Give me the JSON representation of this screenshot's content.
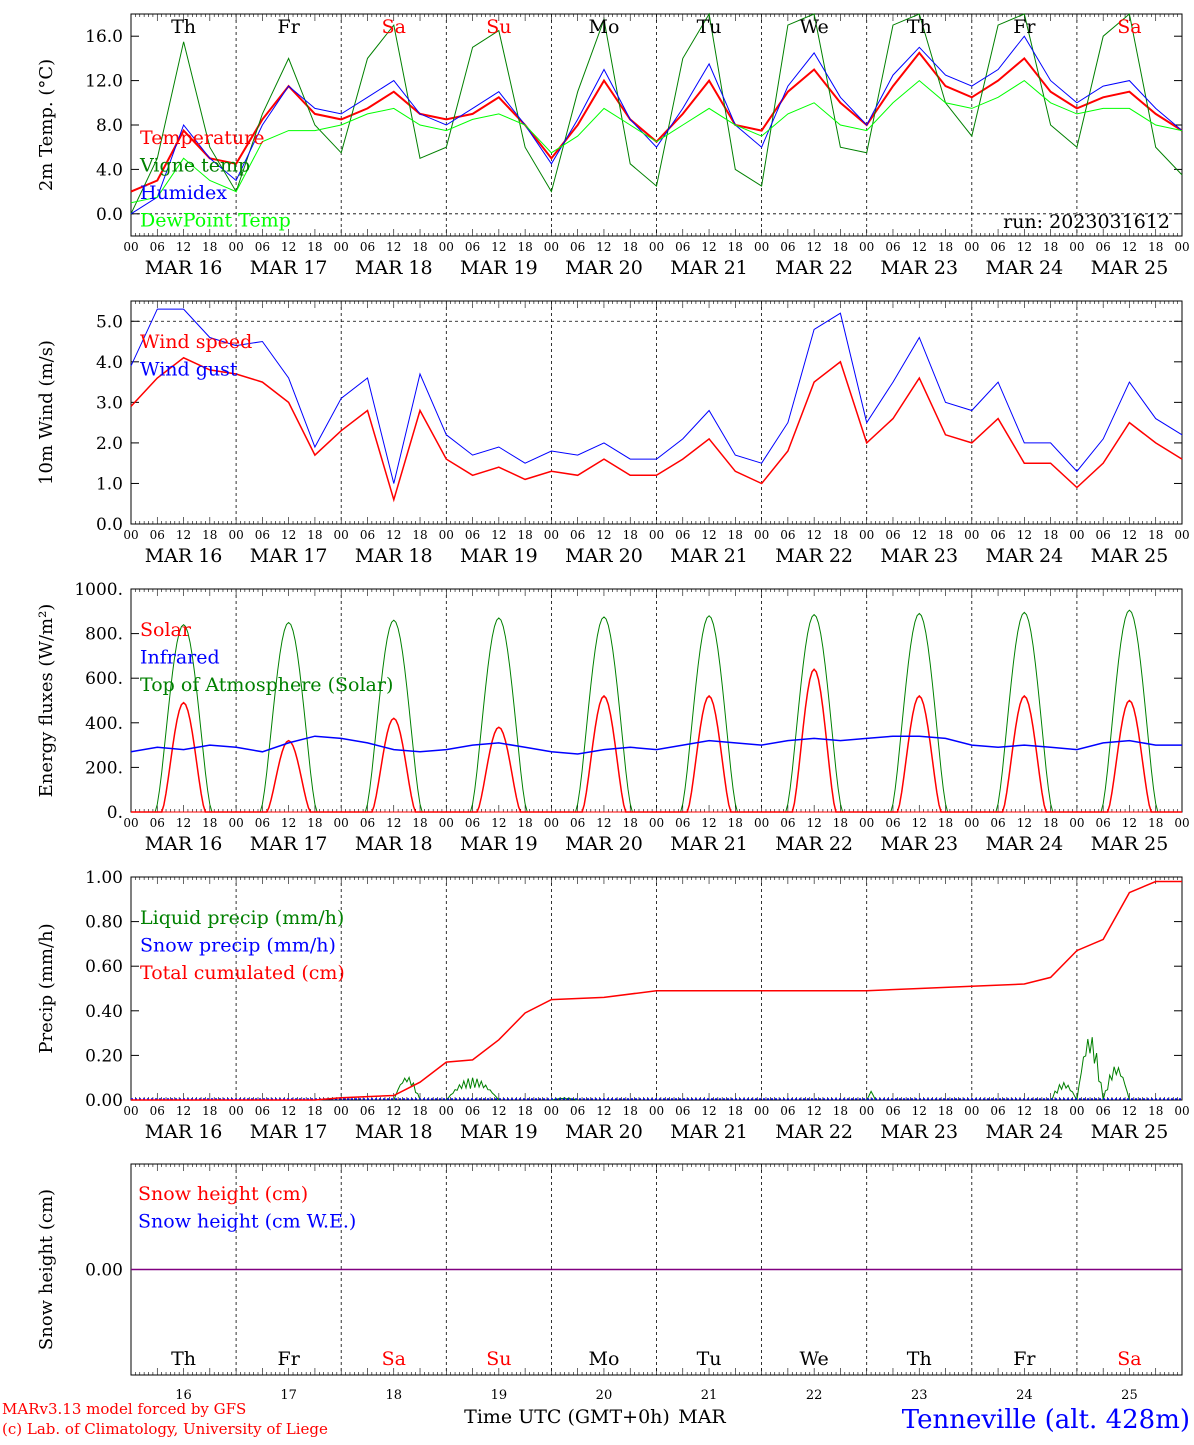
{
  "chart_data": [
    {
      "type": "line",
      "id": "temp",
      "ylabel": "2m Temp. (°C)",
      "ylim": [
        -2,
        18
      ],
      "yticks": [
        "0.0",
        "4.0",
        "8.0",
        "12.0",
        "16.0"
      ],
      "ytick_values": [
        0,
        4,
        8,
        12,
        16
      ],
      "dashed_zero": true,
      "run_label": "run: 2023031612",
      "legend": [
        {
          "name": "Temperature",
          "color": "#ff0000"
        },
        {
          "name": "Vigne temp",
          "color": "#008000"
        },
        {
          "name": "Humidex",
          "color": "#0000ff"
        },
        {
          "name": "DewPoint Temp",
          "color": "#00ff00"
        }
      ],
      "day_labels": [
        {
          "label": "Th",
          "color": "#000000"
        },
        {
          "label": "Fr",
          "color": "#000000"
        },
        {
          "label": "Sa",
          "color": "#ff0000"
        },
        {
          "label": "Su",
          "color": "#ff0000"
        },
        {
          "label": "Mo",
          "color": "#000000"
        },
        {
          "label": "Tu",
          "color": "#000000"
        },
        {
          "label": "We",
          "color": "#000000"
        },
        {
          "label": "Th",
          "color": "#000000"
        },
        {
          "label": "Fr",
          "color": "#000000"
        },
        {
          "label": "Sa",
          "color": "#ff0000"
        }
      ],
      "x": [
        0,
        6,
        12,
        18,
        24,
        30,
        36,
        42,
        48,
        54,
        60,
        66,
        72,
        78,
        84,
        90,
        96,
        102,
        108,
        114,
        120,
        126,
        132,
        138,
        144,
        150,
        156,
        162,
        168,
        174,
        180,
        186,
        192,
        198,
        204,
        210,
        216,
        222,
        228,
        234,
        240
      ],
      "series": [
        {
          "name": "Temperature",
          "color": "#ff0000",
          "width": 2,
          "values": [
            2,
            3,
            7.5,
            5,
            4.5,
            8.5,
            11.5,
            9,
            8.5,
            9.5,
            11,
            9,
            8.5,
            9,
            10.5,
            8,
            5,
            8,
            12,
            8.5,
            6.5,
            9,
            12,
            8,
            7.5,
            11,
            13,
            10,
            8,
            11.5,
            14.5,
            11.5,
            10.5,
            12,
            14,
            11,
            9.5,
            10.5,
            11,
            9,
            7.5
          ]
        },
        {
          "name": "Vigne temp",
          "color": "#008000",
          "width": 1,
          "values": [
            0,
            5,
            15.5,
            6,
            2,
            9,
            14,
            8,
            5.5,
            14,
            17,
            5,
            6,
            15,
            16.5,
            6,
            2,
            11,
            17.5,
            4.5,
            2.5,
            14,
            18,
            4,
            2.5,
            17,
            18,
            6,
            5.5,
            17,
            18,
            10,
            7,
            17,
            18,
            8,
            6,
            16,
            18,
            6,
            3.5
          ]
        },
        {
          "name": "Humidex",
          "color": "#0000ff",
          "width": 1,
          "values": [
            0,
            1.5,
            8,
            5,
            3,
            8,
            11.5,
            9.5,
            9,
            10.5,
            12,
            9,
            8,
            9.5,
            11,
            8,
            4.5,
            8.5,
            13,
            8.5,
            6,
            9.5,
            13.5,
            8,
            6,
            11.5,
            14.5,
            10.5,
            8,
            12.5,
            15,
            12.5,
            11.5,
            13,
            16,
            12,
            10,
            11.5,
            12,
            9.5,
            7.5
          ]
        },
        {
          "name": "DewPoint Temp",
          "color": "#00ff00",
          "width": 1,
          "values": [
            1,
            1.5,
            5,
            3,
            2,
            6.5,
            7.5,
            7.5,
            8,
            9,
            9.5,
            8,
            7.5,
            8.5,
            9,
            8,
            5.5,
            7,
            9.5,
            8,
            6.5,
            8,
            9.5,
            8,
            7,
            9,
            10,
            8,
            7.5,
            10,
            12,
            10,
            9.5,
            10.5,
            12,
            10,
            9,
            9.5,
            9.5,
            8,
            7.5
          ]
        }
      ]
    },
    {
      "type": "line",
      "id": "wind",
      "ylabel": "10m Wind (m/s)",
      "ylim": [
        0,
        5.5
      ],
      "yticks": [
        "0.0",
        "1.0",
        "2.0",
        "3.0",
        "4.0",
        "5.0"
      ],
      "ytick_values": [
        0,
        1,
        2,
        3,
        4,
        5
      ],
      "dashed_top": 5,
      "legend": [
        {
          "name": "Wind speed",
          "color": "#ff0000"
        },
        {
          "name": "Wind gust",
          "color": "#0000ff"
        }
      ],
      "x": [
        0,
        6,
        12,
        18,
        24,
        30,
        36,
        42,
        48,
        54,
        60,
        66,
        72,
        78,
        84,
        90,
        96,
        102,
        108,
        114,
        120,
        126,
        132,
        138,
        144,
        150,
        156,
        162,
        168,
        174,
        180,
        186,
        192,
        198,
        204,
        210,
        216,
        222,
        228,
        234,
        240
      ],
      "series": [
        {
          "name": "Wind speed",
          "color": "#ff0000",
          "width": 1.5,
          "values": [
            2.9,
            3.6,
            4.1,
            3.8,
            3.7,
            3.5,
            3,
            1.7,
            2.3,
            2.8,
            0.6,
            2.8,
            1.6,
            1.2,
            1.4,
            1.1,
            1.3,
            1.2,
            1.6,
            1.2,
            1.2,
            1.6,
            2.1,
            1.3,
            1,
            1.8,
            3.5,
            4,
            2,
            2.6,
            3.6,
            2.2,
            2,
            2.6,
            1.5,
            1.5,
            0.9,
            1.5,
            2.5,
            2,
            1.6
          ]
        },
        {
          "name": "Wind gust",
          "color": "#0000ff",
          "width": 1,
          "values": [
            3.9,
            5.3,
            5.3,
            4.6,
            4.4,
            4.5,
            3.6,
            1.9,
            3.1,
            3.6,
            1,
            3.7,
            2.2,
            1.7,
            1.9,
            1.5,
            1.8,
            1.7,
            2,
            1.6,
            1.6,
            2.1,
            2.8,
            1.7,
            1.5,
            2.5,
            4.8,
            5.2,
            2.5,
            3.5,
            4.6,
            3,
            2.8,
            3.5,
            2,
            2,
            1.3,
            2.1,
            3.5,
            2.6,
            2.2
          ]
        }
      ]
    },
    {
      "type": "line",
      "id": "energy",
      "ylabel": "Energy fluxes (W/m²)",
      "ylim": [
        0,
        1000
      ],
      "yticks": [
        "0.",
        "200.",
        "400.",
        "600.",
        "800.",
        "1000."
      ],
      "ytick_values": [
        0,
        200,
        400,
        600,
        800,
        1000
      ],
      "legend": [
        {
          "name": "Solar",
          "color": "#ff0000"
        },
        {
          "name": "Infrared",
          "color": "#0000ff"
        },
        {
          "name": "Top of Atmosphere (Solar)",
          "color": "#008000"
        }
      ],
      "toa_peaks": [
        840,
        850,
        860,
        870,
        875,
        880,
        885,
        890,
        895,
        905
      ],
      "solar_peaks": [
        490,
        320,
        420,
        380,
        520,
        520,
        640,
        520,
        520,
        500
      ],
      "infrared": [
        270,
        290,
        280,
        300,
        290,
        270,
        310,
        340,
        330,
        310,
        280,
        270,
        280,
        300,
        310,
        290,
        270,
        260,
        280,
        290,
        280,
        300,
        320,
        310,
        300,
        320,
        330,
        320,
        330,
        340,
        340,
        330,
        300,
        290,
        300,
        290,
        280,
        310,
        320,
        300,
        300
      ]
    },
    {
      "type": "line",
      "id": "precip",
      "ylabel": "Precip (mm/h)",
      "ylim": [
        0,
        1
      ],
      "yticks": [
        "0.00",
        "0.20",
        "0.40",
        "0.60",
        "0.80",
        "1.00"
      ],
      "ytick_values": [
        0,
        0.2,
        0.4,
        0.6,
        0.8,
        1.0
      ],
      "legend": [
        {
          "name": "Liquid precip (mm/h)",
          "color": "#008000"
        },
        {
          "name": "Snow precip (mm/h)",
          "color": "#0000ff"
        },
        {
          "name": "Total cumulated (cm)",
          "color": "#ff0000"
        }
      ],
      "cumulated": {
        "x": [
          0,
          42,
          48,
          60,
          66,
          72,
          78,
          84,
          90,
          96,
          108,
          120,
          144,
          168,
          180,
          192,
          204,
          210,
          216,
          222,
          228,
          234,
          240
        ],
        "values": [
          0,
          0,
          0.01,
          0.02,
          0.08,
          0.17,
          0.18,
          0.27,
          0.39,
          0.45,
          0.46,
          0.49,
          0.49,
          0.49,
          0.5,
          0.51,
          0.52,
          0.55,
          0.67,
          0.72,
          0.93,
          0.98,
          0.98
        ]
      },
      "liquid_bursts": [
        [
          60,
          66,
          0.11
        ],
        [
          72,
          84,
          0.1
        ],
        [
          96,
          102,
          0.01
        ],
        [
          168,
          170,
          0.04
        ],
        [
          210,
          216,
          0.08
        ],
        [
          216,
          222,
          0.3
        ],
        [
          222,
          228,
          0.16
        ]
      ]
    },
    {
      "type": "line",
      "id": "snow",
      "ylabel": "Snow height (cm)",
      "ylim": [
        -1,
        1
      ],
      "yticks": [
        "0.00"
      ],
      "ytick_values": [
        0
      ],
      "legend": [
        {
          "name": "Snow height (cm)",
          "color": "#ff0000"
        },
        {
          "name": "Snow height (cm W.E.)",
          "color": "#0000ff"
        }
      ],
      "value": 0,
      "day_labels": [
        {
          "label": "Th",
          "color": "#000000"
        },
        {
          "label": "Fr",
          "color": "#000000"
        },
        {
          "label": "Sa",
          "color": "#ff0000"
        },
        {
          "label": "Su",
          "color": "#ff0000"
        },
        {
          "label": "Mo",
          "color": "#000000"
        },
        {
          "label": "Tu",
          "color": "#000000"
        },
        {
          "label": "We",
          "color": "#000000"
        },
        {
          "label": "Th",
          "color": "#000000"
        },
        {
          "label": "Fr",
          "color": "#000000"
        },
        {
          "label": "Sa",
          "color": "#ff0000"
        }
      ],
      "day_numbers": [
        "16",
        "17",
        "18",
        "19",
        "20",
        "21",
        "22",
        "23",
        "24",
        "25"
      ]
    }
  ],
  "axis": {
    "hour_labels": [
      "00",
      "06",
      "12",
      "18"
    ],
    "end_label": "00",
    "date_labels": [
      "MAR 16",
      "MAR 17",
      "MAR 18",
      "MAR 19",
      "MAR 20",
      "MAR 21",
      "MAR 22",
      "MAR 23",
      "MAR 24",
      "MAR 25"
    ],
    "xlabel": "Time UTC (GMT+0h)",
    "month_label": "MAR"
  },
  "footer": {
    "credit_line1": "MARv3.13 model forced by GFS",
    "credit_line2": "(c) Lab. of Climatology, University of Liege",
    "station": "Tenneville (alt. 428m)"
  },
  "colors": {
    "red": "#ff0000",
    "blue": "#0000ff",
    "green": "#008000",
    "lime": "#00ff00",
    "purple": "#800080"
  }
}
